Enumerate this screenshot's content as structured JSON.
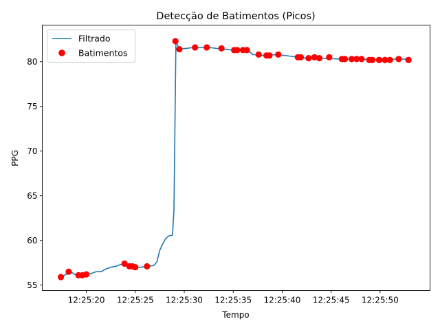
{
  "chart_data": {
    "type": "line",
    "title": "Detecção de Batimentos (Picos)",
    "xlabel": "Tempo",
    "ylabel": "PPG",
    "x_axis_type": "time",
    "xlim": [
      "12:25:15.5",
      "12:25:55.1"
    ],
    "ylim": [
      54.4,
      84.1
    ],
    "x_ticks": [
      "12:25:20",
      "12:25:25",
      "12:25:30",
      "12:25:35",
      "12:25:40",
      "12:25:45",
      "12:25:50"
    ],
    "y_ticks": [
      55,
      60,
      65,
      70,
      75,
      80
    ],
    "grid": false,
    "legend": {
      "placement": "top-left"
    },
    "series": [
      {
        "name": "Filtrado",
        "kind": "line",
        "color": "#1f77b4",
        "points": [
          [
            "12:25:17.4",
            55.9
          ],
          [
            "12:25:18.1",
            56.3
          ],
          [
            "12:25:18.4",
            56.5
          ],
          [
            "12:25:18.8",
            56.2
          ],
          [
            "12:25:19.2",
            56.1
          ],
          [
            "12:25:19.6",
            56.1
          ],
          [
            "12:25:20.0",
            56.2
          ],
          [
            "12:25:20.5",
            56.3
          ],
          [
            "12:25:21.0",
            56.5
          ],
          [
            "12:25:21.5",
            56.5
          ],
          [
            "12:25:22.0",
            56.8
          ],
          [
            "12:25:22.5",
            57.0
          ],
          [
            "12:25:23.0",
            57.1
          ],
          [
            "12:25:23.5",
            57.3
          ],
          [
            "12:25:24.0",
            57.4
          ],
          [
            "12:25:24.3",
            57.3
          ],
          [
            "12:25:24.6",
            57.1
          ],
          [
            "12:25:25.0",
            57.0
          ],
          [
            "12:25:25.5",
            57.0
          ],
          [
            "12:25:26.2",
            57.1
          ],
          [
            "12:25:26.9",
            57.2
          ],
          [
            "12:25:27.2",
            57.6
          ],
          [
            "12:25:27.5",
            58.9
          ],
          [
            "12:25:27.8",
            59.6
          ],
          [
            "12:25:28.1",
            60.2
          ],
          [
            "12:25:28.4",
            60.5
          ],
          [
            "12:25:28.8",
            60.6
          ],
          [
            "12:25:28.95",
            63.5
          ],
          [
            "12:25:29.15",
            82.3
          ],
          [
            "12:25:29.5",
            81.4
          ],
          [
            "12:25:31.0",
            81.6
          ],
          [
            "12:25:32.5",
            81.6
          ],
          [
            "12:25:34.0",
            81.4
          ],
          [
            "12:25:35.0",
            81.3
          ],
          [
            "12:25:36.5",
            81.3
          ],
          [
            "12:25:37.0",
            80.8
          ],
          [
            "12:25:38.0",
            80.7
          ],
          [
            "12:25:39.5",
            80.8
          ],
          [
            "12:25:41.0",
            80.6
          ],
          [
            "12:25:42.5",
            80.4
          ],
          [
            "12:25:44.0",
            80.4
          ],
          [
            "12:25:46.0",
            80.3
          ],
          [
            "12:25:48.0",
            80.3
          ],
          [
            "12:25:50.0",
            80.2
          ],
          [
            "12:25:51.5",
            80.3
          ],
          [
            "12:25:52.8",
            80.3
          ]
        ]
      },
      {
        "name": "Batimentos",
        "kind": "scatter",
        "color": "#ff0000",
        "points": [
          [
            "12:25:17.4",
            55.9
          ],
          [
            "12:25:18.2",
            56.5
          ],
          [
            "12:25:19.2",
            56.1
          ],
          [
            "12:25:19.6",
            56.1
          ],
          [
            "12:25:20.0",
            56.2
          ],
          [
            "12:25:23.9",
            57.4
          ],
          [
            "12:25:24.4",
            57.1
          ],
          [
            "12:25:24.7",
            57.1
          ],
          [
            "12:25:25.0",
            57.0
          ],
          [
            "12:25:26.2",
            57.1
          ],
          [
            "12:25:29.1",
            82.3
          ],
          [
            "12:25:29.5",
            81.4
          ],
          [
            "12:25:31.1",
            81.6
          ],
          [
            "12:25:32.3",
            81.6
          ],
          [
            "12:25:33.8",
            81.5
          ],
          [
            "12:25:35.1",
            81.3
          ],
          [
            "12:25:35.4",
            81.3
          ],
          [
            "12:25:36.0",
            81.3
          ],
          [
            "12:25:36.4",
            81.3
          ],
          [
            "12:25:37.6",
            80.8
          ],
          [
            "12:25:38.4",
            80.7
          ],
          [
            "12:25:38.7",
            80.7
          ],
          [
            "12:25:39.6",
            80.8
          ],
          [
            "12:25:41.6",
            80.5
          ],
          [
            "12:25:41.9",
            80.5
          ],
          [
            "12:25:42.7",
            80.4
          ],
          [
            "12:25:43.3",
            80.5
          ],
          [
            "12:25:43.8",
            80.4
          ],
          [
            "12:25:44.8",
            80.5
          ],
          [
            "12:25:46.1",
            80.3
          ],
          [
            "12:25:46.4",
            80.3
          ],
          [
            "12:25:47.1",
            80.3
          ],
          [
            "12:25:47.6",
            80.3
          ],
          [
            "12:25:48.1",
            80.3
          ],
          [
            "12:25:48.9",
            80.2
          ],
          [
            "12:25:49.2",
            80.2
          ],
          [
            "12:25:49.9",
            80.2
          ],
          [
            "12:25:50.5",
            80.2
          ],
          [
            "12:25:51.0",
            80.2
          ],
          [
            "12:25:51.9",
            80.3
          ],
          [
            "12:25:52.9",
            80.2
          ]
        ]
      }
    ]
  }
}
